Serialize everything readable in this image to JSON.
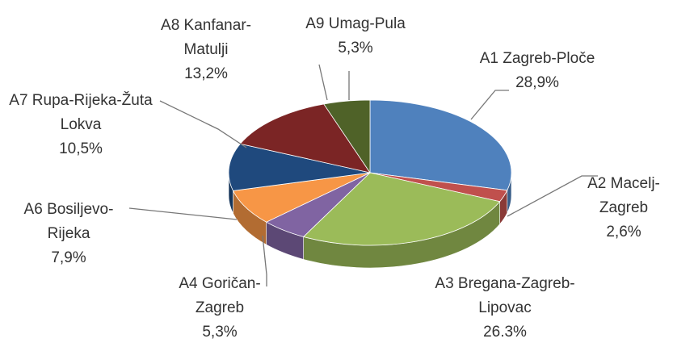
{
  "chart_data": {
    "type": "pie3d",
    "categories": [
      "A1 Zagreb-Ploče",
      "A2 Macelj-Zagreb",
      "A3 Bregana-Zagreb-Lipovac",
      "A4 Goričan-Zagreb",
      "A6 Bosiljevo-Rijeka",
      "A7 Rupa-Rijeka-Žuta Lokva",
      "A8 Kanfanar-Matulji",
      "A9 Umag-Pula"
    ],
    "values": [
      28.9,
      2.6,
      26.3,
      5.3,
      7.9,
      10.5,
      13.2,
      5.3
    ],
    "value_labels": [
      "28,9%",
      "2,6%",
      "26.3%",
      "5,3%",
      "7,9%",
      "10,5%",
      "13,2%",
      "5,3%"
    ],
    "colors": [
      "#4f81bd",
      "#c0504d",
      "#9bbb59",
      "#8064a2",
      "#f79646",
      "#1f497d",
      "#7b2525",
      "#4f6228"
    ]
  }
}
